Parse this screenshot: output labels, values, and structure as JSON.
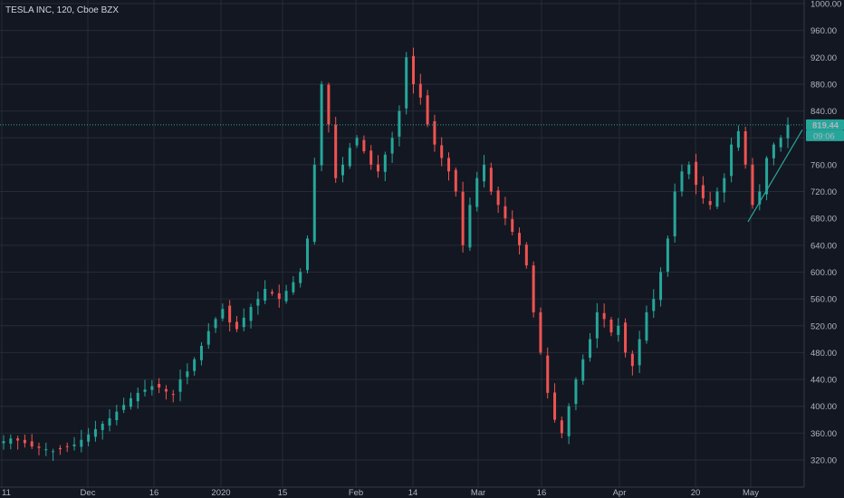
{
  "title": "TESLA INC, 120, Cboe BZX",
  "colors": {
    "background": "#131722",
    "grid": "#262b37",
    "up": "#26a69a",
    "down": "#ef5350",
    "price_line": "#26a69a",
    "label_bg": "#26a69a",
    "label_text": "#131722"
  },
  "price_label": "819.44",
  "countdown_label": "09:06",
  "chart_data": {
    "type": "candlestick",
    "ylim": [
      300,
      1000
    ],
    "y_ticks": [
      "1000.00",
      "960.00",
      "920.00",
      "880.00",
      "840.00",
      "800.00",
      "760.00",
      "720.00",
      "680.00",
      "640.00",
      "600.00",
      "560.00",
      "520.00",
      "480.00",
      "440.00",
      "400.00",
      "360.00",
      "320.00"
    ],
    "x_tick_labels": [
      "11",
      "Dec",
      "16",
      "2020",
      "15",
      "Feb",
      "14",
      "Mar",
      "16",
      "Apr",
      "20",
      "May"
    ],
    "last_price": 819.44,
    "grid": true,
    "closes": [
      348,
      352,
      349,
      345,
      340,
      338,
      336,
      333,
      336,
      340,
      343,
      350,
      358,
      366,
      374,
      382,
      392,
      402,
      412,
      420,
      425,
      430,
      428,
      422,
      418,
      440,
      452,
      470,
      490,
      512,
      530,
      545,
      525,
      515,
      532,
      548,
      560,
      575,
      568,
      560,
      572,
      585,
      600,
      650,
      760,
      880,
      820,
      740,
      760,
      785,
      800,
      780,
      760,
      750,
      775,
      800,
      840,
      920,
      880,
      860,
      820,
      790,
      770,
      750,
      720,
      640,
      700,
      740,
      760,
      720,
      700,
      680,
      660,
      640,
      610,
      540,
      480,
      420,
      380,
      360,
      400,
      440,
      470,
      500,
      540,
      530,
      510,
      520,
      480,
      460,
      500,
      540,
      560,
      600,
      650,
      720,
      750,
      760,
      730,
      710,
      700,
      720,
      740,
      790,
      810,
      760,
      700,
      720,
      770,
      790,
      800,
      819.44
    ]
  }
}
